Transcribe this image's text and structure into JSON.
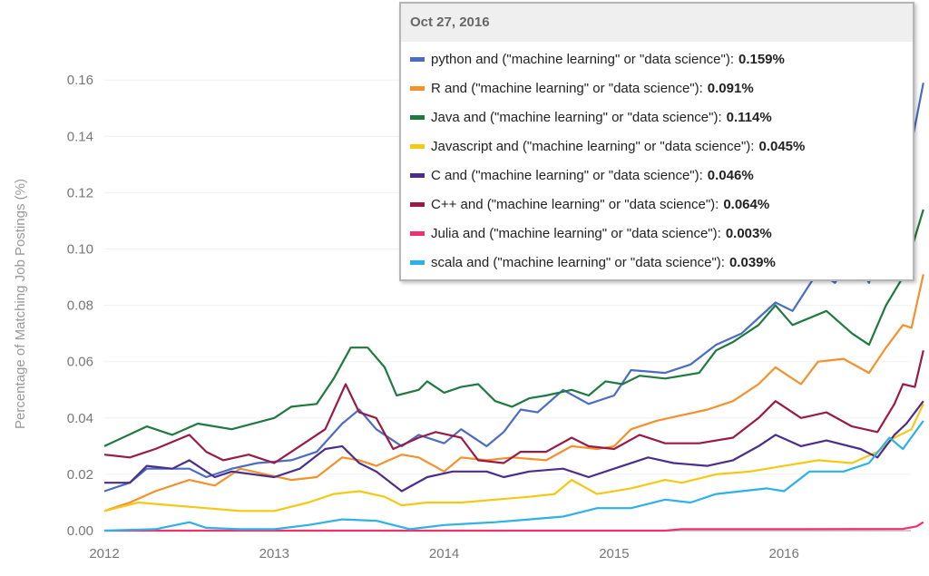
{
  "chart_data": {
    "type": "line",
    "title": "",
    "xlabel": "",
    "ylabel": "Percentage of Matching Job Postings (%)",
    "xlim": [
      2012,
      2016.82
    ],
    "ylim": [
      0,
      0.16
    ],
    "x_ticks": [
      "2012",
      "2013",
      "2014",
      "2015",
      "2016"
    ],
    "y_ticks": [
      "0.00",
      "0.02",
      "0.04",
      "0.06",
      "0.08",
      "0.10",
      "0.12",
      "0.14",
      "0.16"
    ],
    "grid": true,
    "tooltip": {
      "date": "Oct 27, 2016",
      "rows": [
        {
          "label": "python and (\"machine learning\" or \"data science\"):",
          "value": "0.159%",
          "color": "#4a6cc3"
        },
        {
          "label": "R and (\"machine learning\" or \"data science\"):",
          "value": "0.091%",
          "color": "#f5902a"
        },
        {
          "label": "Java and (\"machine learning\" or \"data science\"):",
          "value": "0.114%",
          "color": "#1f7a3f"
        },
        {
          "label": "Javascript and (\"machine learning\" or \"data science\"):",
          "value": "0.045%",
          "color": "#f5c814"
        },
        {
          "label": "C and (\"machine learning\" or \"data science\"):",
          "value": "0.046%",
          "color": "#4b2d8c"
        },
        {
          "label": "C++ and (\"machine learning\" or \"data science\"):",
          "value": "0.064%",
          "color": "#981b48"
        },
        {
          "label": "Julia and (\"machine learning\" or \"data science\"):",
          "value": "0.003%",
          "color": "#f0306c"
        },
        {
          "label": "scala and (\"machine learning\" or \"data science\"):",
          "value": "0.039%",
          "color": "#2cb1e8"
        }
      ]
    },
    "series": [
      {
        "name": "python",
        "color": "#4a6cc3",
        "x": [
          2012,
          2012.15,
          2012.25,
          2012.5,
          2012.6,
          2012.75,
          2012.9,
          2013.1,
          2013.25,
          2013.4,
          2013.5,
          2013.6,
          2013.75,
          2013.85,
          2014.0,
          2014.1,
          2014.25,
          2014.35,
          2014.45,
          2014.55,
          2014.7,
          2014.85,
          2015.0,
          2015.1,
          2015.3,
          2015.45,
          2015.6,
          2015.75,
          2015.95,
          2016.05,
          2016.2,
          2016.3,
          2016.4,
          2016.5,
          2016.6,
          2016.72,
          2016.82
        ],
        "y": [
          0.014,
          0.017,
          0.022,
          0.022,
          0.019,
          0.022,
          0.024,
          0.025,
          0.028,
          0.038,
          0.043,
          0.036,
          0.03,
          0.034,
          0.031,
          0.036,
          0.03,
          0.035,
          0.043,
          0.042,
          0.05,
          0.045,
          0.048,
          0.057,
          0.056,
          0.059,
          0.066,
          0.07,
          0.081,
          0.078,
          0.092,
          0.088,
          0.098,
          0.088,
          0.11,
          0.128,
          0.159
        ]
      },
      {
        "name": "R",
        "color": "#f5902a",
        "x": [
          2012,
          2012.15,
          2012.3,
          2012.5,
          2012.65,
          2012.8,
          2012.95,
          2013.1,
          2013.25,
          2013.4,
          2013.5,
          2013.6,
          2013.75,
          2013.85,
          2014.0,
          2014.1,
          2014.25,
          2014.4,
          2014.6,
          2014.75,
          2014.9,
          2015.0,
          2015.1,
          2015.25,
          2015.4,
          2015.55,
          2015.7,
          2015.85,
          2015.95,
          2016.1,
          2016.2,
          2016.35,
          2016.5,
          2016.6,
          2016.7,
          2016.75,
          2016.82
        ],
        "y": [
          0.007,
          0.01,
          0.014,
          0.018,
          0.016,
          0.022,
          0.02,
          0.018,
          0.019,
          0.026,
          0.025,
          0.023,
          0.027,
          0.026,
          0.021,
          0.026,
          0.025,
          0.026,
          0.025,
          0.03,
          0.029,
          0.03,
          0.036,
          0.039,
          0.041,
          0.043,
          0.046,
          0.052,
          0.058,
          0.052,
          0.06,
          0.061,
          0.056,
          0.065,
          0.073,
          0.072,
          0.091
        ]
      },
      {
        "name": "Java",
        "color": "#1f7a3f",
        "x": [
          2012,
          2012.25,
          2012.4,
          2012.55,
          2012.75,
          2013.0,
          2013.1,
          2013.25,
          2013.35,
          2013.45,
          2013.55,
          2013.65,
          2013.72,
          2013.85,
          2013.9,
          2014.0,
          2014.1,
          2014.2,
          2014.3,
          2014.4,
          2014.5,
          2014.6,
          2014.75,
          2014.85,
          2014.95,
          2015.05,
          2015.15,
          2015.3,
          2015.5,
          2015.6,
          2015.7,
          2015.85,
          2015.95,
          2016.05,
          2016.25,
          2016.4,
          2016.5,
          2016.6,
          2016.7,
          2016.82
        ],
        "y": [
          0.03,
          0.037,
          0.034,
          0.038,
          0.036,
          0.04,
          0.044,
          0.045,
          0.054,
          0.065,
          0.065,
          0.058,
          0.048,
          0.05,
          0.053,
          0.049,
          0.051,
          0.052,
          0.046,
          0.044,
          0.047,
          0.048,
          0.05,
          0.048,
          0.053,
          0.052,
          0.055,
          0.054,
          0.056,
          0.064,
          0.067,
          0.073,
          0.08,
          0.073,
          0.078,
          0.07,
          0.066,
          0.08,
          0.09,
          0.114
        ]
      },
      {
        "name": "Javascript",
        "color": "#f5c814",
        "x": [
          2012,
          2012.2,
          2012.4,
          2012.6,
          2012.8,
          2013.0,
          2013.2,
          2013.35,
          2013.5,
          2013.65,
          2013.75,
          2013.9,
          2014.1,
          2014.3,
          2014.5,
          2014.65,
          2014.75,
          2014.9,
          2015.1,
          2015.3,
          2015.4,
          2015.6,
          2015.8,
          2016.0,
          2016.2,
          2016.4,
          2016.55,
          2016.65,
          2016.75,
          2016.82
        ],
        "y": [
          0.007,
          0.01,
          0.009,
          0.008,
          0.007,
          0.007,
          0.01,
          0.013,
          0.014,
          0.012,
          0.009,
          0.01,
          0.01,
          0.011,
          0.012,
          0.013,
          0.018,
          0.013,
          0.015,
          0.018,
          0.017,
          0.02,
          0.021,
          0.023,
          0.025,
          0.024,
          0.028,
          0.033,
          0.036,
          0.045
        ]
      },
      {
        "name": "C",
        "color": "#4b2d8c",
        "x": [
          2012,
          2012.15,
          2012.25,
          2012.4,
          2012.5,
          2012.65,
          2012.75,
          2013.0,
          2013.15,
          2013.3,
          2013.4,
          2013.5,
          2013.6,
          2013.75,
          2013.9,
          2014.05,
          2014.25,
          2014.35,
          2014.5,
          2014.7,
          2014.85,
          2015.05,
          2015.2,
          2015.35,
          2015.55,
          2015.7,
          2015.85,
          2015.95,
          2016.1,
          2016.25,
          2016.45,
          2016.55,
          2016.65,
          2016.72,
          2016.82
        ],
        "y": [
          0.017,
          0.017,
          0.023,
          0.022,
          0.025,
          0.019,
          0.021,
          0.019,
          0.022,
          0.029,
          0.03,
          0.024,
          0.021,
          0.014,
          0.019,
          0.021,
          0.021,
          0.019,
          0.021,
          0.022,
          0.019,
          0.023,
          0.026,
          0.024,
          0.023,
          0.025,
          0.03,
          0.034,
          0.03,
          0.032,
          0.029,
          0.026,
          0.034,
          0.038,
          0.046
        ]
      },
      {
        "name": "C++",
        "color": "#981b48",
        "x": [
          2012,
          2012.15,
          2012.3,
          2012.5,
          2012.6,
          2012.7,
          2012.85,
          2013.0,
          2013.15,
          2013.3,
          2013.42,
          2013.5,
          2013.6,
          2013.7,
          2013.85,
          2013.95,
          2014.1,
          2014.2,
          2014.35,
          2014.45,
          2014.6,
          2014.75,
          2014.85,
          2015.0,
          2015.15,
          2015.3,
          2015.5,
          2015.7,
          2015.85,
          2015.95,
          2016.1,
          2016.25,
          2016.4,
          2016.55,
          2016.65,
          2016.7,
          2016.77,
          2016.82
        ],
        "y": [
          0.027,
          0.026,
          0.029,
          0.034,
          0.028,
          0.025,
          0.027,
          0.024,
          0.03,
          0.036,
          0.052,
          0.042,
          0.04,
          0.029,
          0.033,
          0.035,
          0.033,
          0.025,
          0.024,
          0.028,
          0.028,
          0.033,
          0.03,
          0.029,
          0.034,
          0.031,
          0.031,
          0.033,
          0.04,
          0.046,
          0.04,
          0.042,
          0.037,
          0.035,
          0.045,
          0.052,
          0.051,
          0.064
        ]
      },
      {
        "name": "Julia",
        "color": "#f0306c",
        "x": [
          2012,
          2015.3,
          2015.4,
          2016.0,
          2016.7,
          2016.78,
          2016.82
        ],
        "y": [
          0,
          0,
          0.0005,
          0.0005,
          0.0006,
          0.0015,
          0.003
        ]
      },
      {
        "name": "scala",
        "color": "#2cb1e8",
        "x": [
          2012,
          2012.3,
          2012.5,
          2012.6,
          2012.8,
          2013.0,
          2013.2,
          2013.4,
          2013.6,
          2013.8,
          2014.0,
          2014.3,
          2014.5,
          2014.7,
          2014.9,
          2015.1,
          2015.3,
          2015.45,
          2015.6,
          2015.75,
          2015.9,
          2016.0,
          2016.15,
          2016.35,
          2016.5,
          2016.62,
          2016.7,
          2016.82
        ],
        "y": [
          0,
          0.0005,
          0.003,
          0.001,
          0.0005,
          0.0005,
          0.002,
          0.004,
          0.0035,
          0.0005,
          0.002,
          0.003,
          0.004,
          0.005,
          0.008,
          0.008,
          0.011,
          0.01,
          0.013,
          0.014,
          0.015,
          0.014,
          0.021,
          0.021,
          0.024,
          0.033,
          0.029,
          0.039
        ]
      }
    ]
  }
}
